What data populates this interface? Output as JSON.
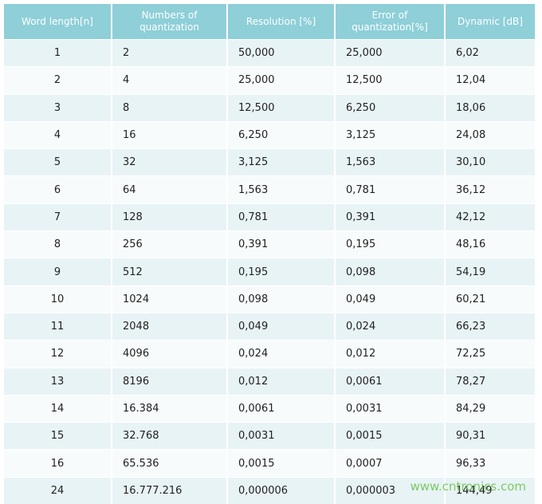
{
  "table": {
    "header": [
      [
        "Word length[n]"
      ],
      [
        "Numbers of",
        "quantization"
      ],
      [
        "Resolution  [%]"
      ],
      [
        "Error of",
        "quantization[%]"
      ],
      [
        "Dynamic [dB]"
      ]
    ],
    "rows": [
      [
        "1",
        "2",
        "50,000",
        "25,000",
        "6,02"
      ],
      [
        "2",
        "4",
        "25,000",
        "12,500",
        "12,04"
      ],
      [
        "3",
        "8",
        "12,500",
        "6,250",
        "18,06"
      ],
      [
        "4",
        "16",
        "6,250",
        "3,125",
        "24,08"
      ],
      [
        "5",
        "32",
        "3,125",
        "1,563",
        "30,10"
      ],
      [
        "6",
        "64",
        "1,563",
        "0,781",
        "36,12"
      ],
      [
        "7",
        "128",
        "0,781",
        "0,391",
        "42,12"
      ],
      [
        "8",
        "256",
        "0,391",
        "0,195",
        "48,16"
      ],
      [
        "9",
        "512",
        "0,195",
        "0,098",
        "54,19"
      ],
      [
        "10",
        "1024",
        "0,098",
        "0,049",
        "60,21"
      ],
      [
        "11",
        "2048",
        "0,049",
        "0,024",
        "66,23"
      ],
      [
        "12",
        "4096",
        "0,024",
        "0,012",
        "72,25"
      ],
      [
        "13",
        "8196",
        "0,012",
        "0,0061",
        "78,27"
      ],
      [
        "14",
        "16.384",
        "0,0061",
        "0,0031",
        "84,29"
      ],
      [
        "15",
        "32.768",
        "0,0031",
        "0,0015",
        "90,31"
      ],
      [
        "16",
        "65.536",
        "0,0015",
        "0,0007",
        "96,33"
      ],
      [
        "24",
        "16.777.216",
        "0,000006",
        "0,000003",
        "144,49"
      ]
    ]
  },
  "watermark": "www.cntronics.com"
}
